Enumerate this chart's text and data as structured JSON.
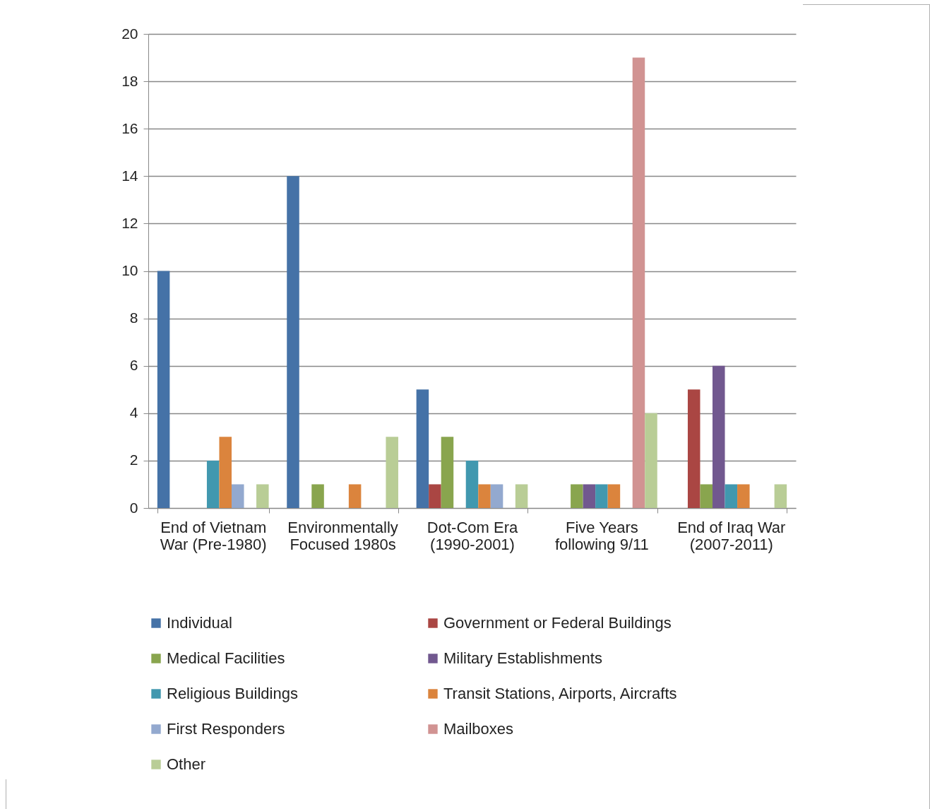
{
  "chart_data": {
    "type": "bar",
    "categories": [
      "End of Vietnam War (Pre-1980)",
      "Environmentally Focused 1980s",
      "Dot-Com Era (1990-2001)",
      "Five Years following 9/11",
      "End of Iraq War (2007-2011)"
    ],
    "series": [
      {
        "name": "Individual",
        "color": "#4572a7",
        "values": [
          10,
          14,
          5,
          0,
          0
        ]
      },
      {
        "name": "Government or Federal Buildings",
        "color": "#aa4643",
        "values": [
          0,
          0,
          1,
          0,
          5
        ]
      },
      {
        "name": "Medical Facilities",
        "color": "#89a54e",
        "values": [
          0,
          1,
          3,
          1,
          1
        ]
      },
      {
        "name": "Military Establishments",
        "color": "#71588f",
        "values": [
          0,
          0,
          0,
          1,
          6
        ]
      },
      {
        "name": "Religious Buildings",
        "color": "#4198af",
        "values": [
          2,
          0,
          2,
          1,
          1
        ]
      },
      {
        "name": "Transit Stations, Airports, Aircrafts",
        "color": "#db843d",
        "values": [
          3,
          1,
          1,
          1,
          1
        ]
      },
      {
        "name": "First Responders",
        "color": "#93a9cf",
        "values": [
          1,
          0,
          1,
          0,
          0
        ]
      },
      {
        "name": "Mailboxes",
        "color": "#d19392",
        "values": [
          0,
          0,
          0,
          19,
          0
        ]
      },
      {
        "name": "Other",
        "color": "#b9cd96",
        "values": [
          1,
          3,
          1,
          4,
          1
        ]
      }
    ],
    "ylim": [
      0,
      20
    ],
    "yticks": [
      0,
      2,
      4,
      6,
      8,
      10,
      12,
      14,
      16,
      18,
      20
    ],
    "grid": "y",
    "legend": "bottom"
  }
}
